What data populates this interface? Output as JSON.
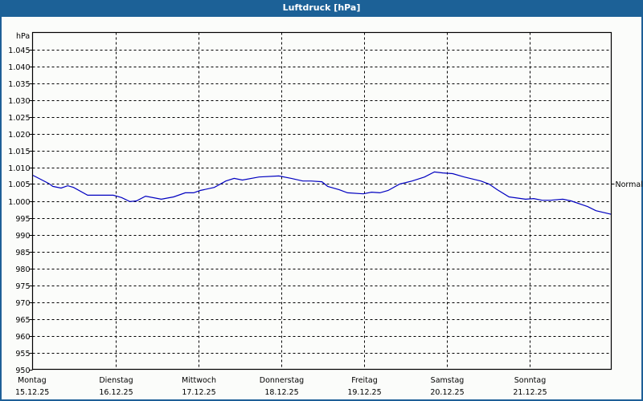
{
  "window": {
    "title": "Luftdruck [hPa]"
  },
  "colors": {
    "titlebar": "#1c6197",
    "line": "#0000c0",
    "grid": "#000000",
    "background": "#fbfcfa"
  },
  "chart_data": {
    "type": "line",
    "title": "Luftdruck [hPa]",
    "xlabel": "",
    "ylabel": "hPa",
    "ylim": [
      950,
      1050
    ],
    "grid": true,
    "y_ticks": [
      "950",
      "955",
      "960",
      "965",
      "970",
      "975",
      "980",
      "985",
      "990",
      "995",
      "1.000",
      "1.005",
      "1.010",
      "1.015",
      "1.020",
      "1.025",
      "1.030",
      "1.035",
      "1.040",
      "1.045"
    ],
    "x_ticks": [
      {
        "day": "Montag",
        "date": "15.12.25"
      },
      {
        "day": "Dienstag",
        "date": "16.12.25"
      },
      {
        "day": "Mittwoch",
        "date": "17.12.25"
      },
      {
        "day": "Donnerstag",
        "date": "18.12.25"
      },
      {
        "day": "Freitag",
        "date": "19.12.25"
      },
      {
        "day": "Samstag",
        "date": "20.12.25"
      },
      {
        "day": "Sonntag",
        "date": "21.12.25"
      }
    ],
    "reference": {
      "label": "Normal",
      "value": 1005
    },
    "series": [
      {
        "name": "Luftdruck",
        "x_days": [
          0.0,
          0.19,
          0.24,
          0.34,
          0.42,
          0.49,
          0.66,
          0.97,
          1.07,
          1.17,
          1.25,
          1.36,
          1.55,
          1.7,
          1.84,
          1.94,
          2.02,
          2.19,
          2.33,
          2.43,
          2.53,
          2.73,
          2.97,
          3.12,
          3.26,
          3.36,
          3.49,
          3.56,
          3.7,
          3.8,
          3.99,
          4.09,
          4.19,
          4.29,
          4.43,
          4.58,
          4.73,
          4.85,
          4.95,
          5.07,
          5.21,
          5.41,
          5.51,
          5.61,
          5.75,
          5.95,
          6.05,
          6.15,
          6.25,
          6.4,
          6.5,
          6.7,
          6.8,
          6.99
        ],
        "values": [
          1007.6,
          1005.2,
          1004.3,
          1003.8,
          1004.5,
          1004.0,
          1001.7,
          1001.7,
          1001.0,
          999.8,
          1000.0,
          1001.4,
          1000.5,
          1001.2,
          1002.4,
          1002.4,
          1003.1,
          1004.0,
          1005.9,
          1006.7,
          1006.2,
          1007.1,
          1007.4,
          1006.7,
          1005.9,
          1005.9,
          1005.7,
          1004.3,
          1003.3,
          1002.4,
          1002.1,
          1002.6,
          1002.4,
          1003.1,
          1005.0,
          1005.9,
          1007.1,
          1008.6,
          1008.3,
          1008.1,
          1007.1,
          1005.9,
          1005.0,
          1003.3,
          1001.2,
          1000.5,
          1000.7,
          1000.2,
          1000.2,
          1000.5,
          1000.0,
          998.3,
          997.1,
          996.0
        ]
      }
    ]
  }
}
